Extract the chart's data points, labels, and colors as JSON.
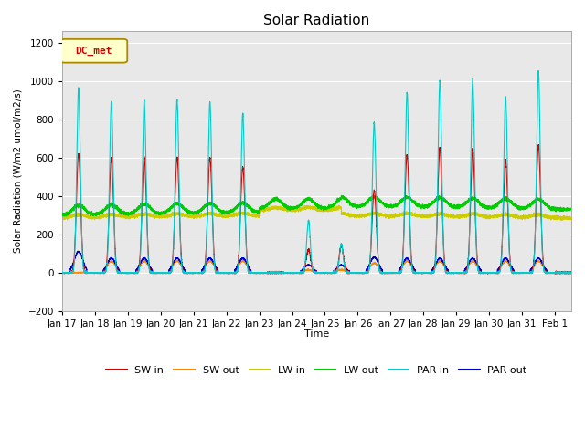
{
  "title": "Solar Radiation",
  "ylabel": "Solar Radiation (W/m2 umol/m2/s)",
  "xlabel": "Time",
  "ylim": [
    -200,
    1260
  ],
  "yticks": [
    -200,
    0,
    200,
    400,
    600,
    800,
    1000,
    1200
  ],
  "xlim_start": 0,
  "xlim_end": 15.5,
  "xtick_labels": [
    "Jan 17",
    "Jan 18",
    "Jan 19",
    "Jan 20",
    "Jan 21",
    "Jan 22",
    "Jan 23",
    "Jan 24",
    "Jan 25",
    "Jan 26",
    "Jan 27",
    "Jan 28",
    "Jan 29",
    "Jan 30",
    "Jan 31",
    "Feb 1"
  ],
  "colors": {
    "SW_in": "#cc0000",
    "SW_out": "#ff8800",
    "LW_in": "#cccc00",
    "LW_out": "#00cc00",
    "PAR_in": "#00cccc",
    "PAR_out": "#0000cc"
  },
  "bg_color": "#e8e8e8",
  "annotation_text": "DC_met",
  "annotation_color": "#cc0000",
  "annotation_bg": "#ffffcc",
  "annotation_border": "#aa8800",
  "par_peaks": [
    960,
    890,
    900,
    900,
    890,
    830,
    0,
    270,
    150,
    780,
    940,
    1000,
    1010,
    920,
    1050
  ],
  "sw_peaks": [
    620,
    600,
    600,
    600,
    600,
    550,
    0,
    120,
    140,
    430,
    615,
    650,
    645,
    590,
    665
  ],
  "par_out_peaks": [
    110,
    75,
    75,
    75,
    75,
    75,
    0,
    40,
    40,
    80,
    75,
    75,
    75,
    75,
    75
  ],
  "sw_out_peaks": [
    0,
    60,
    60,
    60,
    60,
    60,
    0,
    15,
    15,
    50,
    60,
    60,
    60,
    60,
    60
  ],
  "lw_in_base": 285,
  "lw_out_base": 300,
  "lw_out_late_boost": 30
}
